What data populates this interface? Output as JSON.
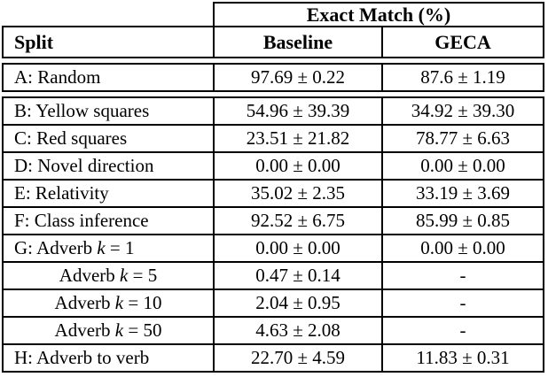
{
  "table": {
    "group_header": "Exact Match (%)",
    "columns": [
      "Split",
      "Baseline",
      "GECA"
    ],
    "rows": [
      {
        "split_pre": "A: Random",
        "baseline": "97.69 ± 0.22",
        "geca": "87.6 ± 1.19"
      },
      {
        "split_pre": "B: Yellow squares",
        "baseline": "54.96 ± 39.39",
        "geca": "34.92 ± 39.30"
      },
      {
        "split_pre": "C: Red squares",
        "baseline": "23.51 ± 21.82",
        "geca": "78.77 ± 6.63"
      },
      {
        "split_pre": "D: Novel direction",
        "baseline": "0.00 ± 0.00",
        "geca": "0.00 ± 0.00"
      },
      {
        "split_pre": "E: Relativity",
        "baseline": "35.02 ± 2.35",
        "geca": "33.19 ± 3.69"
      },
      {
        "split_pre": "F: Class inference",
        "baseline": "92.52 ± 6.75",
        "geca": "85.99 ± 0.85"
      },
      {
        "split_pre": "G: Adverb ",
        "split_k": "k",
        "split_post": " = 1",
        "baseline": "0.00 ± 0.00",
        "geca": "0.00 ± 0.00"
      },
      {
        "split_pre": "Adverb ",
        "split_k": "k",
        "split_post": " = 5",
        "baseline": "0.47 ± 0.14",
        "geca": "-"
      },
      {
        "split_pre": "Adverb ",
        "split_k": "k",
        "split_post": " = 10",
        "baseline": "2.04 ± 0.95",
        "geca": "-"
      },
      {
        "split_pre": "Adverb ",
        "split_k": "k",
        "split_post": " = 50",
        "baseline": "4.63 ± 2.08",
        "geca": "-"
      },
      {
        "split_pre": "H: Adverb to verb",
        "baseline": "22.70 ± 4.59",
        "geca": "11.83 ± 0.31"
      }
    ]
  }
}
